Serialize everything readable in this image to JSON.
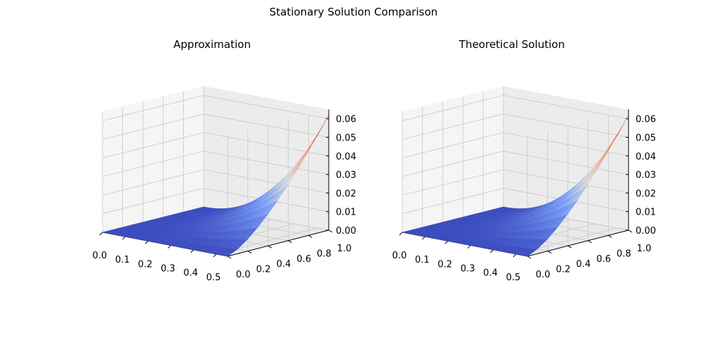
{
  "figure": {
    "suptitle": "Stationary Solution Comparison"
  },
  "chart_data": [
    {
      "type": "surface3d",
      "title": "Approximation",
      "colormap": "coolwarm",
      "x_ticks": [
        "0.0",
        "0.1",
        "0.2",
        "0.3",
        "0.4",
        "0.5"
      ],
      "y_ticks": [
        "0.0",
        "0.2",
        "0.4",
        "0.6",
        "0.8",
        "1.0"
      ],
      "z_ticks": [
        "0.00",
        "0.01",
        "0.02",
        "0.03",
        "0.04",
        "0.05",
        "0.06"
      ],
      "xlim": [
        0.0,
        0.55
      ],
      "ylim": [
        0.0,
        1.0
      ],
      "zlim": [
        0.0,
        0.065
      ],
      "z_max": 0.062,
      "grid": true
    },
    {
      "type": "surface3d",
      "title": "Theoretical Solution",
      "colormap": "coolwarm",
      "x_ticks": [
        "0.0",
        "0.1",
        "0.2",
        "0.3",
        "0.4",
        "0.5"
      ],
      "y_ticks": [
        "0.0",
        "0.2",
        "0.4",
        "0.6",
        "0.8",
        "1.0"
      ],
      "z_ticks": [
        "0.00",
        "0.01",
        "0.02",
        "0.03",
        "0.04",
        "0.05",
        "0.06"
      ],
      "xlim": [
        0.0,
        0.55
      ],
      "ylim": [
        0.0,
        1.0
      ],
      "zlim": [
        0.0,
        0.065
      ],
      "z_max": 0.062,
      "grid": true
    }
  ]
}
